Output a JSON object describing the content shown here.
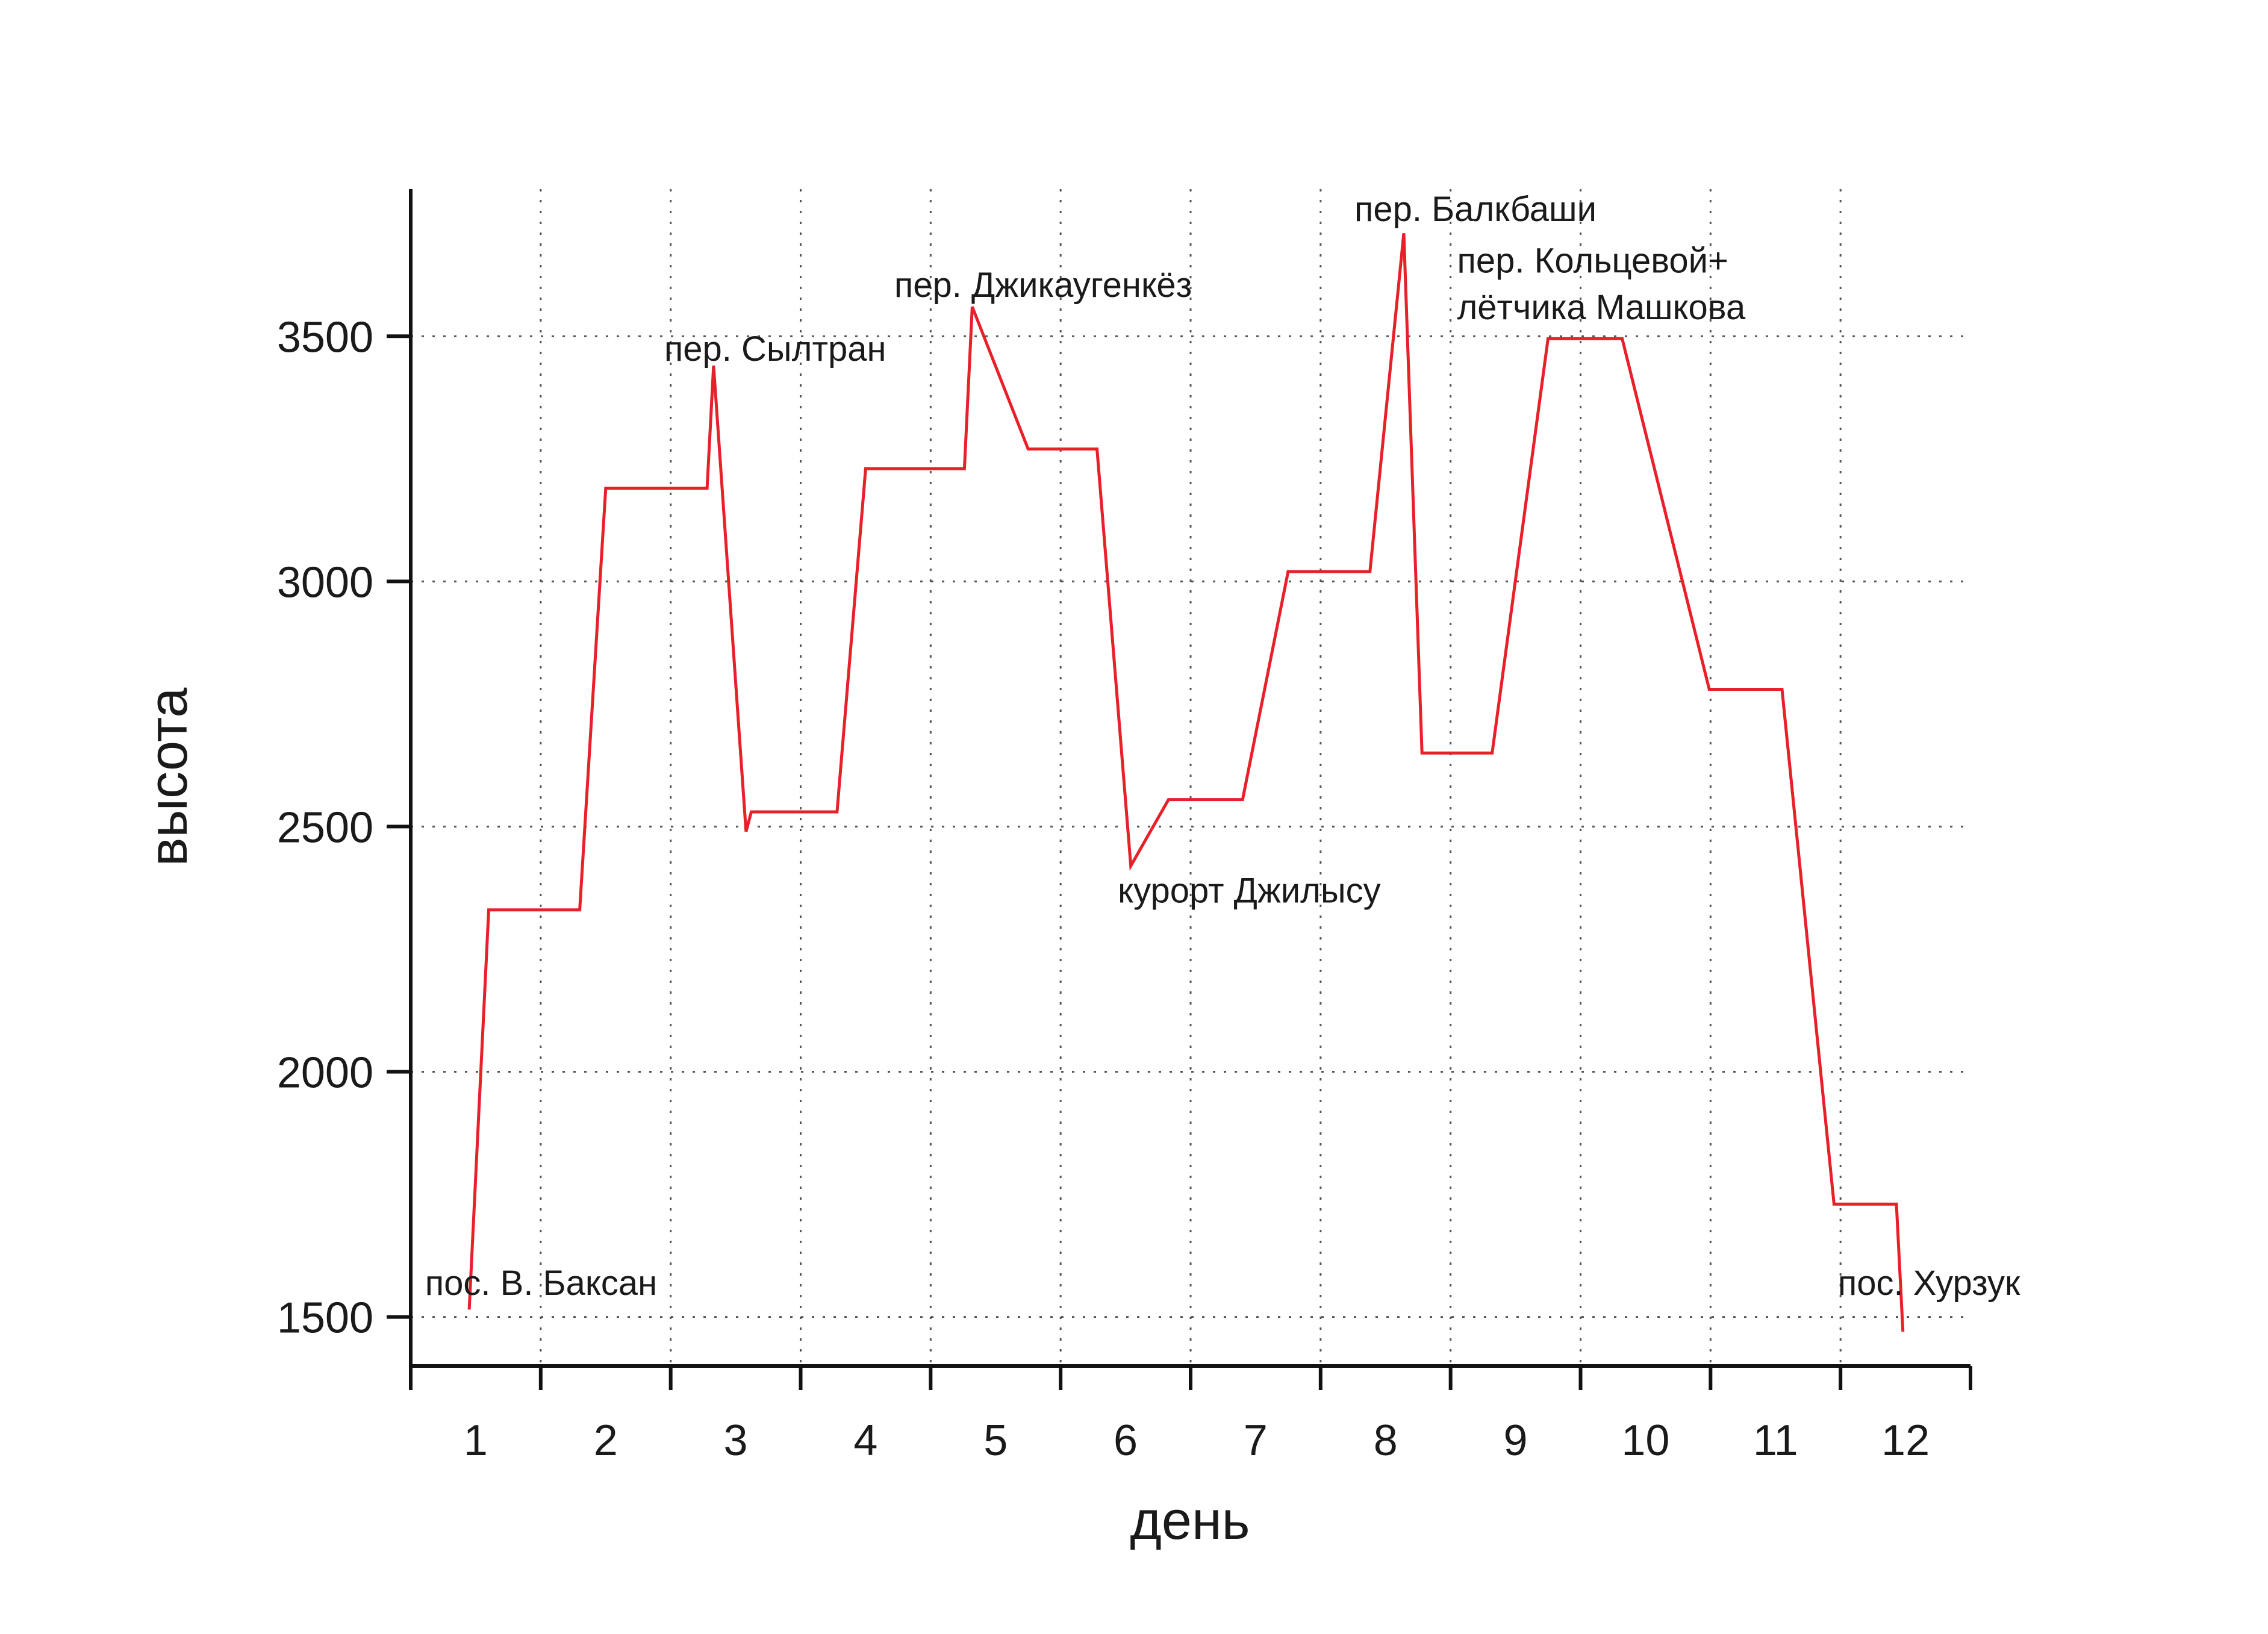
{
  "chart_data": {
    "type": "line",
    "title": "",
    "xlabel": "день",
    "ylabel": "высота",
    "xlim": [
      0.5,
      12.5
    ],
    "ylim": [
      1400,
      3800
    ],
    "x_ticks": [
      1,
      2,
      3,
      4,
      5,
      6,
      7,
      8,
      9,
      10,
      11,
      12
    ],
    "x_tick_labels": [
      "1",
      "2",
      "3",
      "4",
      "5",
      "6",
      "7",
      "8",
      "9",
      "10",
      "11",
      "12"
    ],
    "y_ticks": [
      1500,
      2000,
      2500,
      3000,
      3500
    ],
    "y_tick_labels": [
      "1500",
      "2000",
      "2500",
      "3000",
      "3500"
    ],
    "grid": true,
    "grid_style": "dotted",
    "line_color": "#e8202a",
    "series": [
      {
        "x": [
          0.95,
          1.1,
          1.8,
          2.0,
          2.78,
          2.83,
          3.08,
          3.12,
          3.78,
          4.0,
          4.76,
          4.82,
          5.25,
          5.78,
          6.04,
          6.33,
          6.9,
          7.25,
          7.88,
          8.14,
          8.28,
          8.82,
          9.25,
          9.82,
          10.49,
          11.05,
          11.45,
          11.93,
          11.98
        ],
        "y": [
          1515,
          2330,
          2330,
          3190,
          3190,
          3440,
          2490,
          2530,
          2530,
          3230,
          3230,
          3560,
          3270,
          3270,
          2420,
          2555,
          2555,
          3020,
          3020,
          3710,
          2650,
          2650,
          3495,
          3495,
          2780,
          2780,
          1730,
          1730,
          1470
        ]
      }
    ],
    "annotations": [
      {
        "text": "пос. В. Баксан",
        "x": 0.61,
        "y": 1545
      },
      {
        "text": "пер. Сылтран",
        "x": 2.45,
        "y": 3450
      },
      {
        "text": "пер. Джикаугенкёз",
        "x": 4.22,
        "y": 3580
      },
      {
        "text": "курорт Джилысу",
        "x": 5.94,
        "y": 2345
      },
      {
        "text": "пер. Балкбаши",
        "x": 7.76,
        "y": 3735
      },
      {
        "text": "пер. Кольцевой+",
        "x": 8.55,
        "y": 3630
      },
      {
        "text": "лётчика Машкова",
        "x": 8.55,
        "y": 3535
      },
      {
        "text": "пос. Хурзук",
        "x": 11.48,
        "y": 1545
      }
    ]
  }
}
